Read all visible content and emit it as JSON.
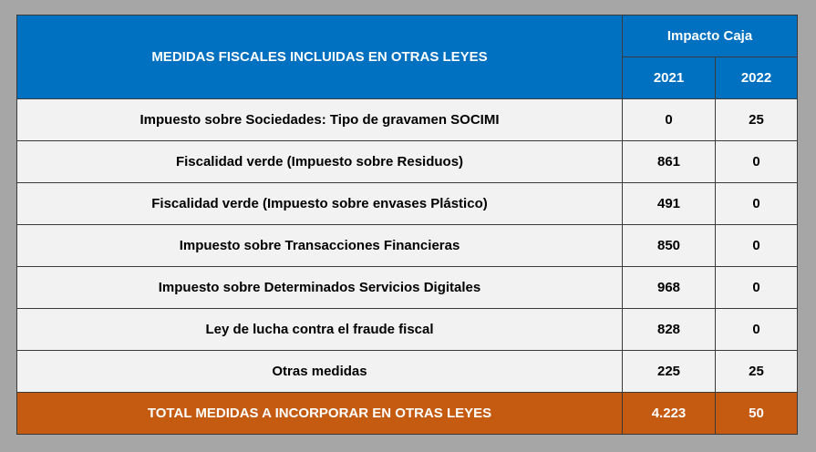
{
  "header": {
    "title": "MEDIDAS FISCALES INCLUIDAS EN OTRAS LEYES",
    "group": "Impacto Caja",
    "year1": "2021",
    "year2": "2022"
  },
  "rows": [
    {
      "label": "Impuesto sobre Sociedades: Tipo de gravamen SOCIMI",
      "v2021": "0",
      "v2022": "25"
    },
    {
      "label": "Fiscalidad verde (Impuesto sobre Residuos)",
      "v2021": "861",
      "v2022": "0"
    },
    {
      "label": "Fiscalidad verde (Impuesto sobre envases Plástico)",
      "v2021": "491",
      "v2022": "0"
    },
    {
      "label": "Impuesto sobre Transacciones Financieras",
      "v2021": "850",
      "v2022": "0"
    },
    {
      "label": "Impuesto sobre Determinados Servicios Digitales",
      "v2021": "968",
      "v2022": "0"
    },
    {
      "label": "Ley de lucha contra el fraude fiscal",
      "v2021": "828",
      "v2022": "0"
    },
    {
      "label": "Otras medidas",
      "v2021": "225",
      "v2022": "25"
    }
  ],
  "total": {
    "label": "TOTAL MEDIDAS A INCORPORAR EN OTRAS LEYES",
    "v2021": "4.223",
    "v2022": "50"
  },
  "colors": {
    "header_bg": "#0070c0",
    "row_bg": "#f2f2f2",
    "total_bg": "#c55a11",
    "page_bg": "#a6a6a6"
  }
}
